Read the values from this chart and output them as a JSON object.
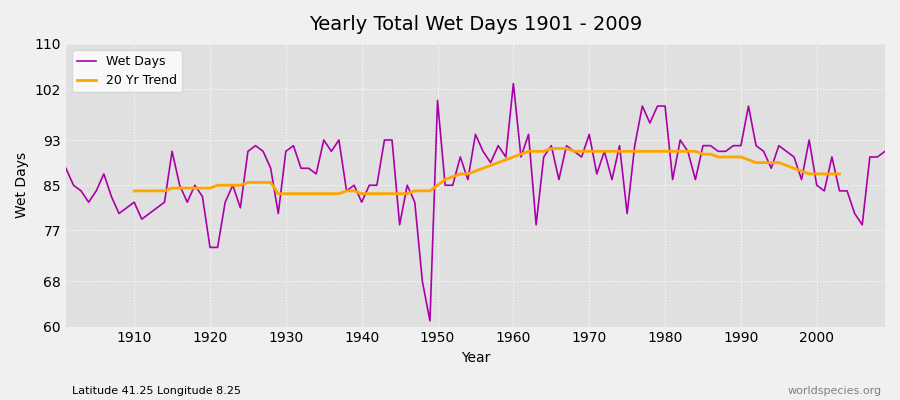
{
  "title": "Yearly Total Wet Days 1901 - 2009",
  "xlabel": "Year",
  "ylabel": "Wet Days",
  "subtitle": "Latitude 41.25 Longitude 8.25",
  "watermark": "worldspecies.org",
  "ylim": [
    60,
    110
  ],
  "yticks": [
    60,
    68,
    77,
    85,
    93,
    102,
    110
  ],
  "xlim": [
    1901,
    2009
  ],
  "xticks": [
    1910,
    1920,
    1930,
    1940,
    1950,
    1960,
    1970,
    1980,
    1990,
    2000
  ],
  "wet_days_color": "#aa00aa",
  "trend_color": "#ffa500",
  "bg_color": "#e0e0e0",
  "fig_bg_color": "#f0f0f0",
  "legend_wet": "Wet Days",
  "legend_trend": "20 Yr Trend",
  "years": [
    1901,
    1902,
    1903,
    1904,
    1905,
    1906,
    1907,
    1908,
    1909,
    1910,
    1911,
    1912,
    1913,
    1914,
    1915,
    1916,
    1917,
    1918,
    1919,
    1920,
    1921,
    1922,
    1923,
    1924,
    1925,
    1926,
    1927,
    1928,
    1929,
    1930,
    1931,
    1932,
    1933,
    1934,
    1935,
    1936,
    1937,
    1938,
    1939,
    1940,
    1941,
    1942,
    1943,
    1944,
    1945,
    1946,
    1947,
    1948,
    1949,
    1950,
    1951,
    1952,
    1953,
    1954,
    1955,
    1956,
    1957,
    1958,
    1959,
    1960,
    1961,
    1962,
    1963,
    1964,
    1965,
    1966,
    1967,
    1968,
    1969,
    1970,
    1971,
    1972,
    1973,
    1974,
    1975,
    1976,
    1977,
    1978,
    1979,
    1980,
    1981,
    1982,
    1983,
    1984,
    1985,
    1986,
    1987,
    1988,
    1989,
    1990,
    1991,
    1992,
    1993,
    1994,
    1995,
    1996,
    1997,
    1998,
    1999,
    2000,
    2001,
    2002,
    2003,
    2004,
    2005,
    2006,
    2007,
    2008,
    2009
  ],
  "wet_days": [
    88,
    85,
    84,
    82,
    84,
    87,
    83,
    80,
    81,
    82,
    79,
    80,
    81,
    82,
    91,
    85,
    82,
    85,
    83,
    74,
    74,
    82,
    85,
    81,
    91,
    92,
    91,
    88,
    80,
    91,
    92,
    88,
    88,
    87,
    93,
    91,
    93,
    84,
    85,
    82,
    85,
    85,
    93,
    93,
    78,
    85,
    82,
    68,
    61,
    100,
    85,
    85,
    90,
    86,
    94,
    91,
    89,
    92,
    90,
    103,
    90,
    94,
    78,
    90,
    92,
    86,
    92,
    91,
    90,
    94,
    87,
    91,
    86,
    92,
    80,
    92,
    99,
    96,
    99,
    99,
    86,
    93,
    91,
    86,
    92,
    92,
    91,
    91,
    92,
    92,
    99,
    92,
    91,
    88,
    92,
    91,
    90,
    86,
    93,
    85,
    84,
    90,
    84,
    84,
    80,
    78,
    90,
    90,
    91
  ],
  "trend_years": [
    1910,
    1911,
    1912,
    1913,
    1914,
    1915,
    1916,
    1917,
    1918,
    1919,
    1920,
    1921,
    1922,
    1923,
    1924,
    1925,
    1926,
    1927,
    1928,
    1929,
    1930,
    1931,
    1932,
    1933,
    1934,
    1935,
    1936,
    1937,
    1938,
    1939,
    1940,
    1941,
    1942,
    1943,
    1944,
    1945,
    1946,
    1947,
    1948,
    1949,
    1950,
    1951,
    1952,
    1953,
    1954,
    1955,
    1956,
    1957,
    1958,
    1959,
    1960,
    1961,
    1962,
    1963,
    1964,
    1965,
    1966,
    1967,
    1968,
    1969,
    1970,
    1971,
    1972,
    1973,
    1974,
    1975,
    1976,
    1977,
    1978,
    1979,
    1980,
    1981,
    1982,
    1983,
    1984,
    1985,
    1986,
    1987,
    1988,
    1989,
    1990,
    1991,
    1992,
    1993,
    1994,
    1995,
    1996,
    1997,
    1998,
    1999,
    2000,
    2001,
    2002,
    2003
  ],
  "trend_values": [
    84.0,
    84.0,
    84.0,
    84.0,
    84.0,
    84.5,
    84.5,
    84.5,
    84.5,
    84.5,
    84.5,
    85.0,
    85.0,
    85.0,
    85.0,
    85.5,
    85.5,
    85.5,
    85.5,
    83.5,
    83.5,
    83.5,
    83.5,
    83.5,
    83.5,
    83.5,
    83.5,
    83.5,
    84.0,
    84.0,
    83.5,
    83.5,
    83.5,
    83.5,
    83.5,
    83.5,
    83.5,
    84.0,
    84.0,
    84.0,
    85.0,
    86.0,
    86.5,
    87.0,
    87.0,
    87.5,
    88.0,
    88.5,
    89.0,
    89.5,
    90.0,
    90.5,
    91.0,
    91.0,
    91.0,
    91.5,
    91.5,
    91.5,
    91.0,
    91.0,
    91.0,
    91.0,
    91.0,
    91.0,
    91.0,
    91.0,
    91.0,
    91.0,
    91.0,
    91.0,
    91.0,
    91.0,
    91.0,
    91.0,
    91.0,
    90.5,
    90.5,
    90.0,
    90.0,
    90.0,
    90.0,
    89.5,
    89.0,
    89.0,
    89.0,
    89.0,
    88.5,
    88.0,
    87.5,
    87.0,
    87.0,
    87.0,
    87.0,
    87.0
  ]
}
